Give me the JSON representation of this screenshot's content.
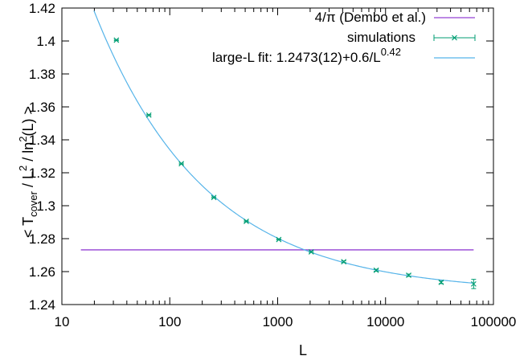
{
  "chart_data": {
    "type": "scatter",
    "xscale": "log",
    "xlim": [
      10,
      100000
    ],
    "ylim": [
      1.24,
      1.42
    ],
    "xticks": [
      "10",
      "100",
      "1000",
      "10000",
      "100000"
    ],
    "yticks": [
      "1.24",
      "1.26",
      "1.28",
      "1.3",
      "1.32",
      "1.34",
      "1.36",
      "1.38",
      "1.4",
      "1.42"
    ],
    "xlabel": "L",
    "ylabel_parts": {
      "open": "< T",
      "sub1": "cover",
      "mid1": " / L",
      "sup1": "2",
      "mid2": " / ln",
      "sup2": "2",
      "close": "(L) >"
    },
    "legend_position": "top-right",
    "reference_line": {
      "name": "4/π  (Dembo et al.)",
      "value": 1.2732,
      "x_range": [
        15,
        65536
      ],
      "color": "#9440d3"
    },
    "simulations": {
      "name": "simulations",
      "color": "#009e73",
      "points": [
        {
          "x": 32,
          "y": 1.4005,
          "err": 0.0003
        },
        {
          "x": 64,
          "y": 1.355,
          "err": 0.0003
        },
        {
          "x": 128,
          "y": 1.3255,
          "err": 0.0003
        },
        {
          "x": 256,
          "y": 1.305,
          "err": 0.0003
        },
        {
          "x": 512,
          "y": 1.2905,
          "err": 0.0003
        },
        {
          "x": 1024,
          "y": 1.2795,
          "err": 0.0003
        },
        {
          "x": 2048,
          "y": 1.272,
          "err": 0.0004
        },
        {
          "x": 4096,
          "y": 1.266,
          "err": 0.0005
        },
        {
          "x": 8192,
          "y": 1.2608,
          "err": 0.0006
        },
        {
          "x": 16384,
          "y": 1.2578,
          "err": 0.0007
        },
        {
          "x": 32768,
          "y": 1.2535,
          "err": 0.0008
        },
        {
          "x": 65536,
          "y": 1.2525,
          "err": 0.0028
        }
      ]
    },
    "fit": {
      "name_main": "large-L fit:  1.2473(12)+0.6/L",
      "name_sup": "0.42",
      "a": 1.2473,
      "b": 0.6,
      "c": 0.42,
      "x_range": [
        15,
        65536
      ],
      "color": "#56b4e9"
    }
  }
}
